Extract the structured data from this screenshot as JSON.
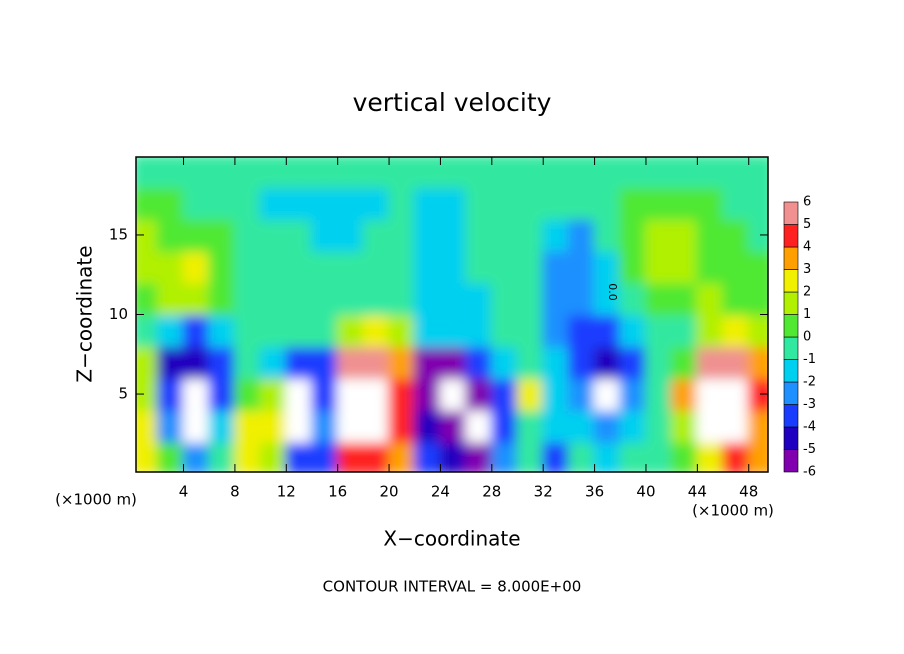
{
  "chart_data": {
    "type": "heatmap",
    "title": "vertical velocity",
    "x_label": "X−coordinate",
    "y_label": "Z−coordinate",
    "x_unit_left": "(×1000 m)",
    "x_unit_right": "(×1000 m)",
    "footer": "CONTOUR INTERVAL = 8.000E+00",
    "contour_label": "0.0",
    "x": [
      1,
      3,
      5,
      7,
      9,
      11,
      13,
      15,
      17,
      19,
      21,
      23,
      25,
      27,
      29,
      31,
      33,
      35,
      37,
      39,
      41,
      43,
      45,
      47,
      49
    ],
    "y": [
      1,
      3,
      5,
      7,
      9,
      11,
      13,
      15,
      17,
      19
    ],
    "z": [
      [
        3,
        1,
        -2,
        0,
        3,
        2,
        -3,
        -3,
        5,
        5,
        4,
        -3,
        -4,
        -5,
        -2,
        0,
        -3,
        0,
        -1,
        0,
        0,
        1,
        3,
        5,
        4
      ],
      [
        3,
        -2,
        -7,
        -1,
        3,
        3,
        -7,
        -2,
        7,
        7,
        5,
        -4,
        -5,
        -7,
        -3,
        0,
        -1,
        -1,
        -2,
        -1,
        0,
        2,
        7,
        8,
        4
      ],
      [
        2,
        -3,
        -7,
        -3,
        1,
        2,
        -7,
        -3,
        7,
        8,
        5,
        -5,
        -7,
        -5,
        -3,
        3,
        -1,
        -2,
        -7,
        -2,
        0,
        4,
        7,
        8,
        5
      ],
      [
        2,
        -4,
        -4,
        -3,
        0,
        -1,
        -3,
        -3,
        6,
        6,
        4,
        -5,
        -5,
        -3,
        -1,
        0,
        -1,
        -3,
        -4,
        -3,
        0,
        1,
        6,
        6,
        4
      ],
      [
        0,
        -1,
        -3,
        -1,
        0,
        0,
        0,
        0,
        2,
        3,
        2,
        -1,
        -1,
        -1,
        0,
        0,
        -2,
        -3,
        -3,
        -1,
        0,
        0,
        2,
        3,
        2
      ],
      [
        1,
        2,
        2,
        1,
        0,
        0,
        0,
        0,
        0,
        0,
        0,
        -1,
        -1,
        -1,
        0,
        0,
        -2,
        -2,
        -1,
        0,
        1,
        1,
        2,
        1,
        1
      ],
      [
        2,
        2,
        3,
        1,
        0,
        0,
        0,
        0,
        0,
        0,
        0,
        -1,
        -1,
        0,
        0,
        0,
        -2,
        -2,
        -1,
        1,
        2,
        2,
        1,
        1,
        1
      ],
      [
        2,
        1,
        1,
        1,
        0,
        0,
        0,
        -1,
        -1,
        0,
        0,
        -1,
        -1,
        0,
        0,
        0,
        -1,
        -2,
        0,
        1,
        2,
        2,
        1,
        1,
        0
      ],
      [
        1,
        1,
        0,
        0,
        0,
        -1,
        -1,
        -1,
        -1,
        -1,
        0,
        -1,
        -1,
        0,
        0,
        0,
        0,
        0,
        0,
        1,
        1,
        1,
        1,
        0,
        0
      ],
      [
        0,
        0,
        0,
        0,
        0,
        0,
        0,
        0,
        0,
        0,
        0,
        0,
        0,
        0,
        0,
        0,
        0,
        0,
        0,
        0,
        0,
        0,
        0,
        0,
        0
      ]
    ],
    "xlim": [
      0.3,
      49.5
    ],
    "ylim": [
      0.1,
      19.9
    ],
    "xticks": [
      4,
      8,
      12,
      16,
      20,
      24,
      28,
      32,
      36,
      40,
      44,
      48
    ],
    "yticks": [
      5,
      10,
      15
    ],
    "colorbar_ticks": [
      -6,
      -5,
      -4,
      -3,
      -2,
      -1,
      0,
      1,
      2,
      3,
      4,
      5,
      6
    ],
    "colors": [
      "#8000b0",
      "#2000c0",
      "#1a3cff",
      "#1e90ff",
      "#00d0f0",
      "#30e8a0",
      "#50e830",
      "#b0f000",
      "#f0f000",
      "#ffa000",
      "#ff2020",
      "#f09090"
    ],
    "out_of_range_color": "#ffffff"
  }
}
